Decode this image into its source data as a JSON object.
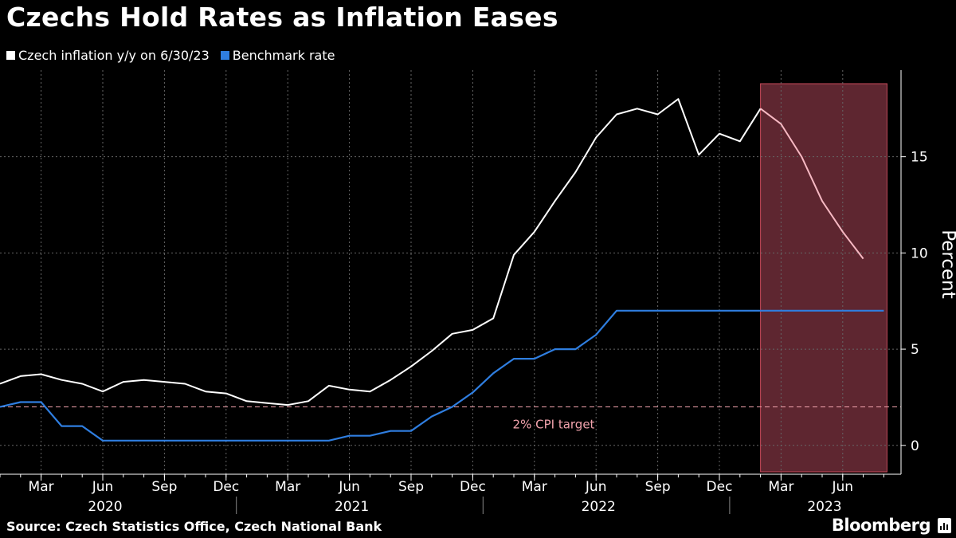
{
  "title": "Czechs Hold Rates as Inflation Eases",
  "source": "Source: Czech Statistics Office, Czech National Bank",
  "brand": "Bloomberg",
  "colors": {
    "background": "#000000",
    "inflation": "#ffffff",
    "inflation_highlight": "#f7b9c3",
    "rate": "#2f7ee0",
    "highlight_fill": "#5e2630",
    "highlight_stroke": "#c74a5a",
    "target_line": "#f2a3ad",
    "grid": "#666666",
    "text": "#ffffff"
  },
  "chart_data": {
    "type": "line",
    "title": "Czechs Hold Rates as Inflation Eases",
    "xlabel": "",
    "ylabel": "Percent",
    "ylim": [
      -1.5,
      19.5
    ],
    "yticks": [
      0,
      5,
      10,
      15
    ],
    "x_tick_labels": [
      {
        "index": 2,
        "label": "Mar"
      },
      {
        "index": 5,
        "label": "Jun"
      },
      {
        "index": 8,
        "label": "Sep"
      },
      {
        "index": 11,
        "label": "Dec"
      },
      {
        "index": 14,
        "label": "Mar"
      },
      {
        "index": 17,
        "label": "Jun"
      },
      {
        "index": 20,
        "label": "Sep"
      },
      {
        "index": 23,
        "label": "Dec"
      },
      {
        "index": 26,
        "label": "Mar"
      },
      {
        "index": 29,
        "label": "Jun"
      },
      {
        "index": 32,
        "label": "Sep"
      },
      {
        "index": 35,
        "label": "Dec"
      },
      {
        "index": 38,
        "label": "Mar"
      },
      {
        "index": 41,
        "label": "Jun"
      }
    ],
    "year_labels": [
      {
        "index": 5,
        "label": "2020"
      },
      {
        "index": 17,
        "label": "2021"
      },
      {
        "index": 29,
        "label": "2022"
      },
      {
        "index": 40,
        "label": "2023"
      }
    ],
    "year_separators": [
      11.5,
      23.5,
      35.5
    ],
    "x_start": "Jan 2020",
    "series": [
      {
        "name": "Czech inflation y/y on 6/30/23",
        "values": [
          3.2,
          3.6,
          3.7,
          3.4,
          3.2,
          2.8,
          3.3,
          3.4,
          3.3,
          3.2,
          2.8,
          2.7,
          2.3,
          2.2,
          2.1,
          2.3,
          3.1,
          2.9,
          2.8,
          3.4,
          4.1,
          4.9,
          5.8,
          6.0,
          6.6,
          9.9,
          11.1,
          12.7,
          14.2,
          16.0,
          17.2,
          17.5,
          17.2,
          18.0,
          15.1,
          16.2,
          15.8,
          17.5,
          16.7,
          15.0,
          12.7,
          11.1,
          9.7
        ]
      },
      {
        "name": "Benchmark rate",
        "values": [
          2.0,
          2.25,
          2.25,
          1.0,
          1.0,
          0.25,
          0.25,
          0.25,
          0.25,
          0.25,
          0.25,
          0.25,
          0.25,
          0.25,
          0.25,
          0.25,
          0.25,
          0.5,
          0.5,
          0.75,
          0.75,
          1.5,
          2.0,
          2.75,
          3.75,
          4.5,
          4.5,
          5.0,
          5.0,
          5.75,
          7.0,
          7.0,
          7.0,
          7.0,
          7.0,
          7.0,
          7.0,
          7.0,
          7.0,
          7.0,
          7.0,
          7.0,
          7.0,
          7.0
        ]
      }
    ],
    "reference_line": {
      "value": 2,
      "label": "2% CPI target"
    },
    "highlight_range": {
      "start_index": 37,
      "end_index": 43
    }
  }
}
